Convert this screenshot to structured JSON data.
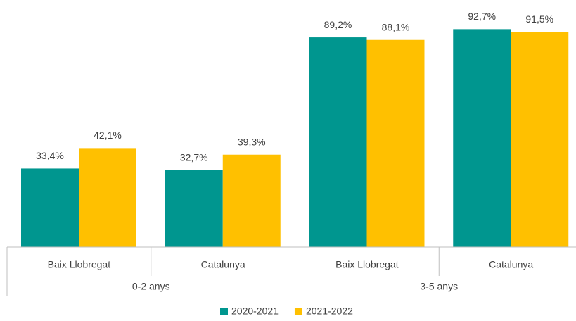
{
  "chart_data": {
    "type": "bar",
    "categories": [
      "Baix Llobregat",
      "Catalunya",
      "Baix Llobregat",
      "Catalunya"
    ],
    "groups": [
      "0-2 anys",
      "3-5 anys"
    ],
    "ylim": [
      0,
      100
    ],
    "series": [
      {
        "name": "2020-2021",
        "color": "#00968f",
        "values": [
          33.4,
          32.7,
          89.2,
          92.7
        ],
        "value_labels": [
          "33,4%",
          "32,7%",
          "89,2%",
          "92,7%"
        ]
      },
      {
        "name": "2021-2022",
        "color": "#ffc000",
        "values": [
          42.1,
          39.3,
          88.1,
          91.5
        ],
        "value_labels": [
          "42,1%",
          "39,3%",
          "88,1%",
          "91,5%"
        ]
      }
    ],
    "legend": "bottom"
  }
}
